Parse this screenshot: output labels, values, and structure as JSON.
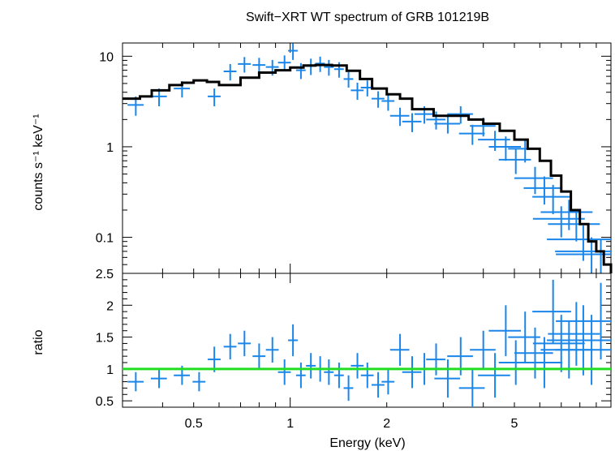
{
  "title": "Swift−XRT WT spectrum of GRB 101219B",
  "colors": {
    "data": "#1a86ea",
    "model": "#000000",
    "unity": "#22dd22",
    "axis": "#000000"
  },
  "chart_data": [
    {
      "type": "scatter",
      "panel": "spectrum",
      "ylabel": "counts s⁻¹ keV⁻¹",
      "xscale": "log",
      "yscale": "log",
      "xlim": [
        0.3,
        10
      ],
      "ylim": [
        0.04,
        14
      ],
      "yticks": [
        0.1,
        1,
        10
      ],
      "ytick_labels": [
        "0.1",
        "1",
        "10"
      ],
      "series": [
        {
          "kind": "data",
          "x": [
            0.33,
            0.39,
            0.46,
            0.58,
            0.65,
            0.72,
            0.8,
            0.88,
            0.96,
            1.02,
            1.08,
            1.16,
            1.24,
            1.32,
            1.42,
            1.52,
            1.62,
            1.74,
            1.88,
            2.02,
            2.2,
            2.4,
            2.62,
            2.85,
            3.1,
            3.4,
            3.7,
            4.0,
            4.35,
            4.7,
            5.05,
            5.4,
            5.8,
            6.2,
            6.6,
            7.0,
            7.4,
            7.8,
            8.2,
            8.7,
            9.3
          ],
          "y": [
            2.9,
            3.6,
            4.4,
            3.6,
            6.8,
            8.2,
            8.0,
            7.6,
            8.5,
            11.5,
            7.0,
            7.8,
            8.3,
            7.6,
            7.2,
            5.6,
            4.2,
            4.5,
            3.4,
            3.2,
            2.2,
            1.9,
            2.3,
            2.0,
            1.8,
            2.3,
            1.4,
            1.7,
            1.2,
            1.0,
            0.72,
            0.95,
            0.45,
            0.35,
            0.28,
            0.16,
            0.19,
            0.14,
            0.095,
            0.07,
            0.065
          ],
          "xerr": [
            0.025,
            0.025,
            0.025,
            0.02,
            0.02,
            0.02,
            0.02,
            0.02,
            0.02,
            0.015,
            0.015,
            0.015,
            0.015,
            0.015,
            0.015,
            0.015,
            0.02,
            0.02,
            0.02,
            0.02,
            0.03,
            0.03,
            0.03,
            0.03,
            0.04,
            0.04,
            0.04,
            0.04,
            0.05,
            0.05,
            0.05,
            0.05,
            0.06,
            0.06,
            0.06,
            0.08,
            0.08,
            0.08,
            0.1,
            0.1,
            0.12
          ],
          "yerr": [
            0.7,
            0.8,
            0.9,
            0.8,
            1.4,
            1.6,
            1.6,
            1.5,
            1.7,
            2.4,
            1.4,
            1.6,
            1.6,
            1.5,
            1.4,
            1.1,
            0.9,
            0.9,
            0.7,
            0.7,
            0.5,
            0.45,
            0.5,
            0.45,
            0.4,
            0.5,
            0.35,
            0.4,
            0.3,
            0.3,
            0.22,
            0.28,
            0.15,
            0.12,
            0.1,
            0.06,
            0.07,
            0.05,
            0.04,
            0.03,
            0.03
          ]
        },
        {
          "kind": "model",
          "x": [
            0.3,
            0.34,
            0.37,
            0.42,
            0.46,
            0.5,
            0.55,
            0.6,
            0.7,
            0.8,
            0.9,
            1.0,
            1.1,
            1.2,
            1.35,
            1.5,
            1.65,
            1.8,
            2.0,
            2.2,
            2.4,
            2.8,
            3.2,
            3.6,
            4.0,
            4.5,
            5.0,
            5.5,
            6.0,
            6.5,
            7.0,
            7.5,
            8.0,
            8.5,
            9.0,
            9.5,
            10.0
          ],
          "y": [
            3.4,
            3.6,
            4.2,
            4.8,
            5.1,
            5.4,
            5.2,
            4.8,
            5.8,
            6.6,
            7.0,
            7.5,
            7.9,
            8.0,
            7.9,
            6.9,
            5.6,
            4.4,
            3.8,
            3.4,
            2.6,
            2.2,
            2.2,
            2.0,
            1.8,
            1.5,
            1.2,
            0.95,
            0.7,
            0.48,
            0.32,
            0.2,
            0.14,
            0.09,
            0.07,
            0.05,
            0.04
          ]
        }
      ]
    },
    {
      "type": "scatter",
      "panel": "ratio",
      "xlabel": "Energy (keV)",
      "ylabel": "ratio",
      "xscale": "log",
      "xlim": [
        0.3,
        10
      ],
      "ylim": [
        0.4,
        2.5
      ],
      "xticks": [
        0.5,
        1,
        2,
        5
      ],
      "xtick_labels": [
        "0.5",
        "1",
        "2",
        "5"
      ],
      "yticks": [
        0.5,
        1,
        1.5,
        2,
        2.5
      ],
      "ytick_labels": [
        "0.5",
        "1",
        "1.5",
        "2",
        "2.5"
      ],
      "reference_line": 1,
      "series": [
        {
          "kind": "data",
          "x": [
            0.33,
            0.39,
            0.46,
            0.52,
            0.58,
            0.65,
            0.72,
            0.8,
            0.88,
            0.96,
            1.02,
            1.08,
            1.16,
            1.24,
            1.32,
            1.42,
            1.52,
            1.62,
            1.74,
            1.88,
            2.02,
            2.2,
            2.4,
            2.62,
            2.85,
            3.1,
            3.4,
            3.7,
            4.0,
            4.35,
            4.7,
            5.05,
            5.4,
            5.8,
            6.2,
            6.6,
            7.0,
            7.4,
            7.8,
            8.2,
            8.7,
            9.3
          ],
          "y": [
            0.8,
            0.85,
            0.9,
            0.8,
            1.15,
            1.35,
            1.4,
            1.2,
            1.3,
            0.95,
            1.45,
            0.9,
            1.05,
            1.0,
            0.95,
            0.9,
            0.7,
            1.05,
            0.9,
            0.75,
            0.8,
            1.3,
            0.95,
            1.0,
            1.15,
            0.85,
            1.2,
            0.7,
            1.3,
            0.9,
            1.6,
            1.1,
            1.5,
            1.25,
            1.1,
            1.9,
            1.4,
            1.3,
            1.55,
            1.45,
            1.3,
            1.75
          ],
          "xerr": [
            0.025,
            0.025,
            0.025,
            0.02,
            0.02,
            0.02,
            0.02,
            0.02,
            0.02,
            0.02,
            0.015,
            0.015,
            0.015,
            0.015,
            0.015,
            0.015,
            0.015,
            0.02,
            0.02,
            0.02,
            0.02,
            0.03,
            0.03,
            0.03,
            0.03,
            0.04,
            0.04,
            0.04,
            0.04,
            0.05,
            0.05,
            0.05,
            0.05,
            0.06,
            0.06,
            0.06,
            0.08,
            0.08,
            0.08,
            0.1,
            0.1,
            0.12
          ],
          "yerr": [
            0.15,
            0.15,
            0.15,
            0.15,
            0.2,
            0.2,
            0.2,
            0.2,
            0.2,
            0.2,
            0.25,
            0.2,
            0.2,
            0.2,
            0.2,
            0.2,
            0.2,
            0.2,
            0.2,
            0.2,
            0.2,
            0.25,
            0.25,
            0.25,
            0.25,
            0.3,
            0.3,
            0.3,
            0.3,
            0.35,
            0.4,
            0.35,
            0.4,
            0.4,
            0.4,
            0.5,
            0.45,
            0.45,
            0.5,
            0.55,
            0.55,
            0.6
          ]
        }
      ]
    }
  ]
}
